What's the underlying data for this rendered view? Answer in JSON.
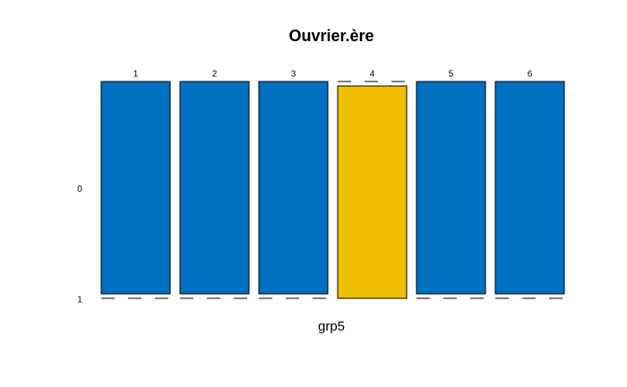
{
  "chart_data": {
    "type": "mosaic",
    "title": "Ouvrier.ère",
    "xlabel": "grp5",
    "categories": [
      "1",
      "2",
      "3",
      "4",
      "5",
      "6"
    ],
    "series": [
      {
        "name": "0",
        "color": "#0070c0",
        "values": [
          1,
          1,
          1,
          0,
          1,
          1
        ]
      },
      {
        "name": "1",
        "color": "#f0c000",
        "values": [
          0,
          0,
          0,
          1,
          0,
          0
        ]
      }
    ]
  }
}
